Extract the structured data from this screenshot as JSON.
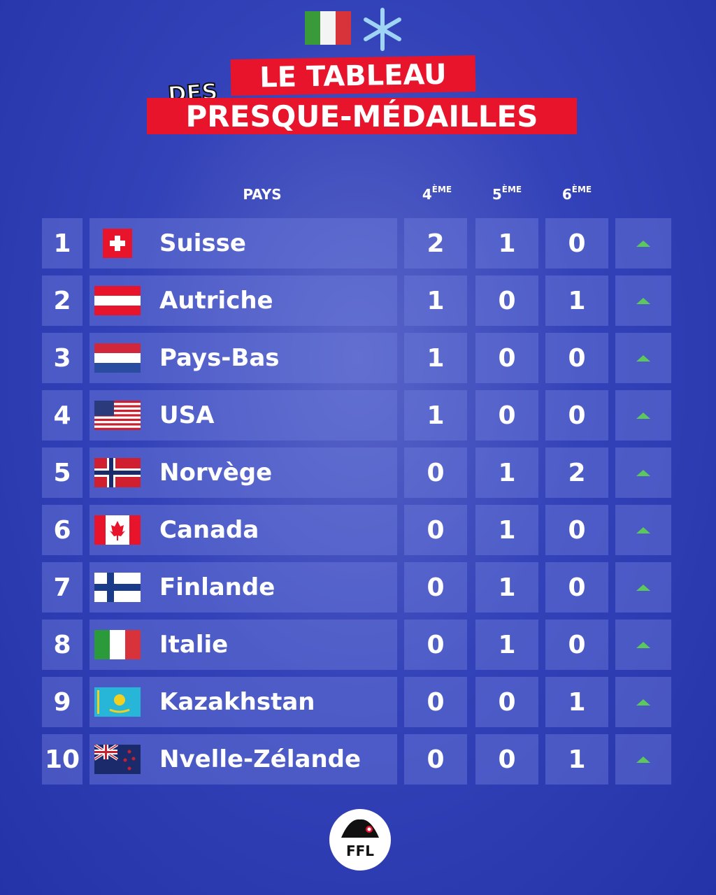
{
  "header": {
    "line1": "LE TABLEAU",
    "line2": "DES",
    "line3": "PRESQUE-MÉDAILLES"
  },
  "table": {
    "columns": [
      {
        "label": "PAYS"
      },
      {
        "base": "4",
        "sup": "ÈME"
      },
      {
        "base": "5",
        "sup": "ÈME"
      },
      {
        "base": "6",
        "sup": "ÈME"
      }
    ],
    "rows": [
      [
        "1",
        "Suisse",
        "2",
        "1",
        "0"
      ],
      [
        "2",
        "Autriche",
        "1",
        "0",
        "1"
      ],
      [
        "3",
        "Pays-Bas",
        "1",
        "0",
        "0"
      ],
      [
        "4",
        "USA",
        "1",
        "0",
        "0"
      ],
      [
        "5",
        "Norvège",
        "0",
        "1",
        "2"
      ],
      [
        "6",
        "Canada",
        "0",
        "1",
        "0"
      ],
      [
        "7",
        "Finlande",
        "0",
        "1",
        "0"
      ],
      [
        "8",
        "Italie",
        "0",
        "1",
        "0"
      ],
      [
        "9",
        "Kazakhstan",
        "0",
        "0",
        "1"
      ],
      [
        "10",
        "Nvelle-Zélande",
        "0",
        "0",
        "1"
      ]
    ]
  },
  "logo": {
    "text": "FFL"
  }
}
